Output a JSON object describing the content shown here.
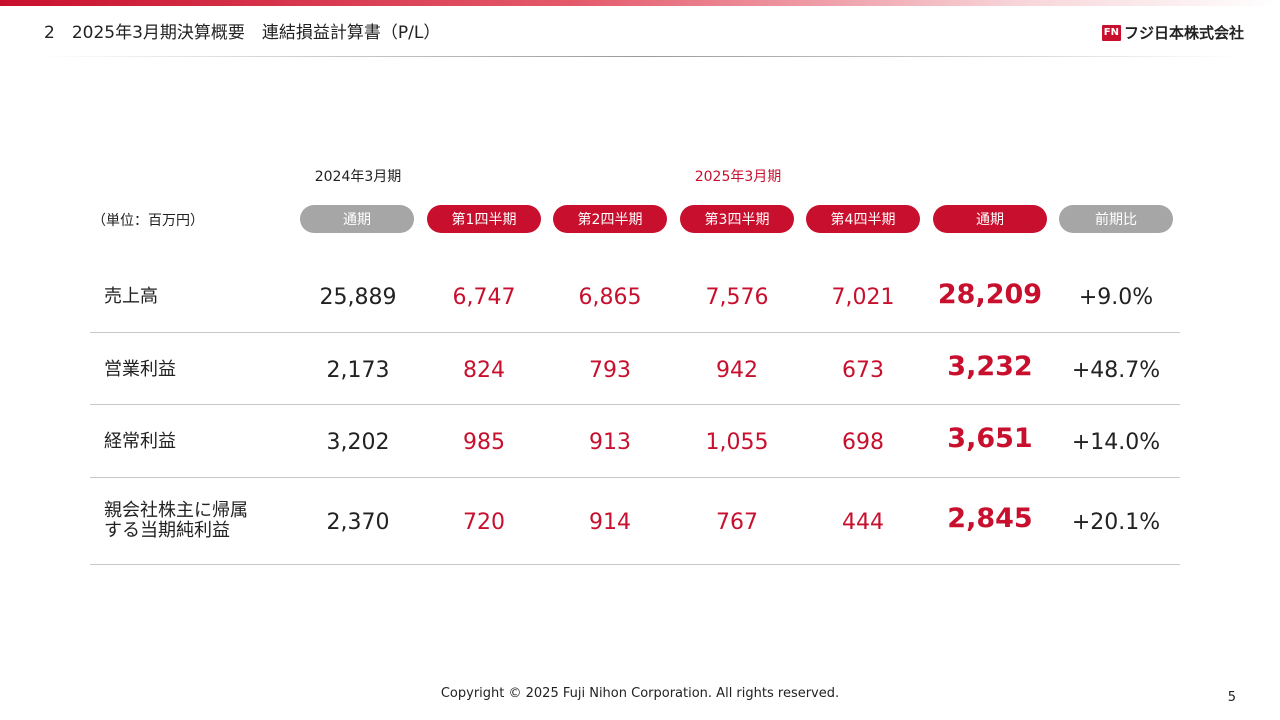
{
  "header": {
    "title": "2　2025年3月期決算概要　連結損益計算書（P/L）",
    "logo_mark": "FN",
    "logo_text": "フジ日本株式会社"
  },
  "table": {
    "unit": "（単位：百万円）",
    "period_2024": "2024年3月期",
    "period_2025": "2025年3月期",
    "columns": [
      "通期",
      "第1四半期",
      "第2四半期",
      "第3四半期",
      "第4四半期",
      "通期",
      "前期比"
    ],
    "rows": [
      {
        "label_lines": [
          "売上高"
        ],
        "prev": "25,889",
        "quarters": [
          "6,747",
          "6,865",
          "7,576",
          "7,021"
        ],
        "total": "28,209",
        "ratio": "+9.0%"
      },
      {
        "label_lines": [
          "営業利益"
        ],
        "prev": "2,173",
        "quarters": [
          "824",
          "793",
          "942",
          "673"
        ],
        "total": "3,232",
        "ratio": "+48.7%"
      },
      {
        "label_lines": [
          "経常利益"
        ],
        "prev": "3,202",
        "quarters": [
          "985",
          "913",
          "1,055",
          "698"
        ],
        "total": "3,651",
        "ratio": "+14.0%"
      },
      {
        "label_lines": [
          "親会社株主に帰属",
          "する当期純利益"
        ],
        "prev": "2,370",
        "quarters": [
          "720",
          "914",
          "767",
          "444"
        ],
        "total": "2,845",
        "ratio": "+20.1%"
      }
    ]
  },
  "footer": {
    "copyright": "Copyright © 2025 Fuji Nihon Corporation.  All rights reserved.",
    "page_number": "5"
  },
  "colors": {
    "accent": "#c8102e",
    "pill_gray": "#a6a6a6",
    "rule": "#c8c8c8"
  }
}
